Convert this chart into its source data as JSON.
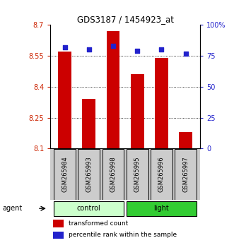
{
  "title": "GDS3187 / 1454923_at",
  "samples": [
    "GSM265984",
    "GSM265993",
    "GSM265998",
    "GSM265995",
    "GSM265996",
    "GSM265997"
  ],
  "bar_values": [
    8.57,
    8.34,
    8.67,
    8.46,
    8.54,
    8.18
  ],
  "percentile_values": [
    82,
    80,
    83,
    79,
    80,
    77
  ],
  "bar_bottom": 8.1,
  "ylim_left": [
    8.1,
    8.7
  ],
  "ylim_right": [
    0,
    100
  ],
  "yticks_left": [
    8.1,
    8.25,
    8.4,
    8.55,
    8.7
  ],
  "yticks_right": [
    0,
    25,
    50,
    75,
    100
  ],
  "ytick_labels_left": [
    "8.1",
    "8.25",
    "8.4",
    "8.55",
    "8.7"
  ],
  "ytick_labels_right": [
    "0",
    "25",
    "50",
    "75",
    "100%"
  ],
  "bar_color": "#cc0000",
  "dot_color": "#2222cc",
  "groups": [
    {
      "label": "control",
      "indices": [
        0,
        1,
        2
      ],
      "color": "#ccffcc"
    },
    {
      "label": "light",
      "indices": [
        3,
        4,
        5
      ],
      "color": "#33cc33"
    }
  ],
  "agent_label": "agent",
  "legend_bar_label": "transformed count",
  "legend_dot_label": "percentile rank within the sample",
  "tick_label_color_left": "#cc2200",
  "tick_label_color_right": "#2222cc",
  "bg_color": "#ffffff",
  "xticklabel_bg": "#cccccc",
  "bar_width": 0.55
}
